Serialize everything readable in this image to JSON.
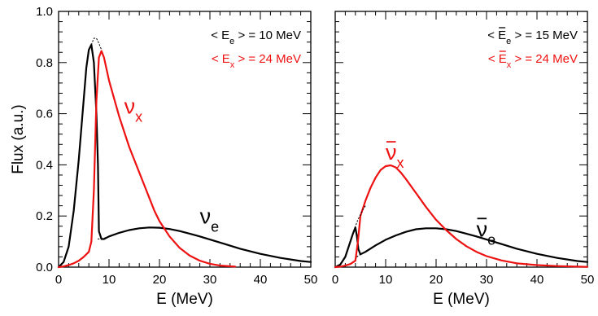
{
  "chart_data": [
    {
      "type": "line",
      "panel": "left",
      "xlabel": "E (MeV)",
      "ylabel": "Flux (a.u.)",
      "xlim": [
        0,
        50
      ],
      "ylim": [
        0,
        1.0
      ],
      "xticks": [
        "0",
        "10",
        "20",
        "30",
        "40",
        "50"
      ],
      "yticks": [
        "0.0",
        "0.2",
        "0.4",
        "0.6",
        "0.8",
        "1.0"
      ],
      "grid": false,
      "legend": [
        {
          "text_pre": "< E",
          "sub": "e",
          "text_post": " > = 10 MeV",
          "color": "#000000"
        },
        {
          "text_pre": "< E",
          "sub": "x",
          "text_post": " > = 24 MeV",
          "color": "#ee1111"
        }
      ],
      "series": [
        {
          "label": "ν",
          "sub": "e",
          "bar": false,
          "color": "#000000",
          "style": "solid",
          "x": [
            0,
            1,
            2,
            3,
            4,
            5,
            5.5,
            6,
            6.5,
            7,
            7.5,
            7.8,
            8,
            8.5,
            9,
            10,
            12,
            14,
            16,
            18,
            20,
            22,
            24,
            26,
            28,
            30,
            33,
            36,
            40,
            44,
            48,
            50
          ],
          "y": [
            0,
            0.02,
            0.08,
            0.22,
            0.42,
            0.66,
            0.78,
            0.85,
            0.87,
            0.8,
            0.6,
            0.4,
            0.14,
            0.11,
            0.11,
            0.12,
            0.134,
            0.145,
            0.152,
            0.155,
            0.154,
            0.149,
            0.141,
            0.131,
            0.12,
            0.108,
            0.09,
            0.072,
            0.052,
            0.036,
            0.024,
            0.02
          ]
        },
        {
          "label": "ν",
          "sub": "x",
          "bar": false,
          "color": "#ee1111",
          "style": "solid",
          "x": [
            0,
            1,
            2,
            3,
            4,
            5,
            6,
            6.5,
            7,
            7.5,
            8,
            8.5,
            9,
            10,
            11,
            12,
            13,
            14,
            15,
            16,
            17,
            18,
            19,
            20,
            22,
            24,
            26,
            28,
            30,
            32,
            35
          ],
          "y": [
            0,
            0.003,
            0.008,
            0.015,
            0.025,
            0.04,
            0.06,
            0.1,
            0.3,
            0.65,
            0.82,
            0.845,
            0.82,
            0.73,
            0.66,
            0.59,
            0.53,
            0.47,
            0.42,
            0.37,
            0.32,
            0.27,
            0.22,
            0.18,
            0.12,
            0.075,
            0.045,
            0.025,
            0.013,
            0.006,
            0.002
          ]
        },
        {
          "label": "",
          "sub": "",
          "bar": false,
          "color": "#000000",
          "style": "dotted",
          "x": [
            6.5,
            7,
            7.5,
            8,
            8.5
          ],
          "y": [
            0.87,
            0.895,
            0.895,
            0.875,
            0.85
          ]
        },
        {
          "label": "",
          "sub": "",
          "bar": false,
          "color": "#000000",
          "style": "dotted",
          "x": [
            7.8,
            8.5,
            9,
            10
          ],
          "y": [
            0.11,
            0.112,
            0.113,
            0.12
          ]
        }
      ]
    },
    {
      "type": "line",
      "panel": "right",
      "xlabel": "E (MeV)",
      "ylabel": "",
      "xlim": [
        0,
        50
      ],
      "ylim": [
        0,
        1.0
      ],
      "xticks": [
        "0",
        "10",
        "20",
        "30",
        "40",
        "50"
      ],
      "yticks": [],
      "grid": false,
      "legend": [
        {
          "text_pre": "< E",
          "sub": "e",
          "bar": true,
          "text_post": " > = 15 MeV",
          "color": "#000000"
        },
        {
          "text_pre": "< E",
          "sub": "x",
          "bar": true,
          "text_post": " > = 24 MeV",
          "color": "#ee1111"
        }
      ],
      "series": [
        {
          "label": "ν",
          "sub": "e",
          "bar": true,
          "color": "#000000",
          "style": "solid",
          "x": [
            0,
            1,
            2,
            3,
            3.5,
            4,
            4.3,
            4.6,
            5,
            6,
            8,
            10,
            12,
            14,
            16,
            18,
            20,
            22,
            24,
            26,
            28,
            30,
            33,
            36,
            40,
            44,
            48,
            50
          ],
          "y": [
            0,
            0.01,
            0.04,
            0.1,
            0.13,
            0.155,
            0.12,
            0.07,
            0.05,
            0.06,
            0.085,
            0.107,
            0.124,
            0.138,
            0.148,
            0.152,
            0.152,
            0.148,
            0.141,
            0.131,
            0.12,
            0.108,
            0.09,
            0.072,
            0.052,
            0.036,
            0.024,
            0.02
          ]
        },
        {
          "label": "ν",
          "sub": "x",
          "bar": true,
          "color": "#ee1111",
          "style": "solid",
          "x": [
            0,
            1,
            2,
            3,
            4,
            4.5,
            5,
            6,
            7,
            8,
            9,
            10,
            11,
            12,
            13,
            14,
            16,
            18,
            20,
            22,
            24,
            26,
            28,
            30,
            33,
            36,
            40,
            44,
            48,
            50
          ],
          "y": [
            0,
            0.002,
            0.006,
            0.012,
            0.025,
            0.1,
            0.2,
            0.26,
            0.31,
            0.35,
            0.38,
            0.395,
            0.398,
            0.39,
            0.37,
            0.345,
            0.29,
            0.235,
            0.185,
            0.145,
            0.11,
            0.082,
            0.06,
            0.043,
            0.026,
            0.015,
            0.008,
            0.004,
            0.002,
            0.001
          ]
        },
        {
          "label": "",
          "sub": "",
          "bar": false,
          "color": "#000000",
          "style": "dotted",
          "x": [
            3.5,
            4,
            4.5,
            5,
            5.5,
            6
          ],
          "y": [
            0.13,
            0.16,
            0.185,
            0.205,
            0.225,
            0.24
          ]
        },
        {
          "label": "",
          "sub": "",
          "bar": false,
          "color": "#000000",
          "style": "dotted",
          "x": [
            4.3,
            4.6,
            5,
            6
          ],
          "y": [
            0.04,
            0.045,
            0.05,
            0.06
          ]
        }
      ]
    }
  ],
  "curve_labels": [
    {
      "panel": 0,
      "series": 0,
      "x": 28,
      "y": 0.17
    },
    {
      "panel": 0,
      "series": 1,
      "x": 13,
      "y": 0.6
    },
    {
      "panel": 1,
      "series": 0,
      "x": 28,
      "y": 0.12
    },
    {
      "panel": 1,
      "series": 1,
      "x": 10,
      "y": 0.42
    }
  ]
}
